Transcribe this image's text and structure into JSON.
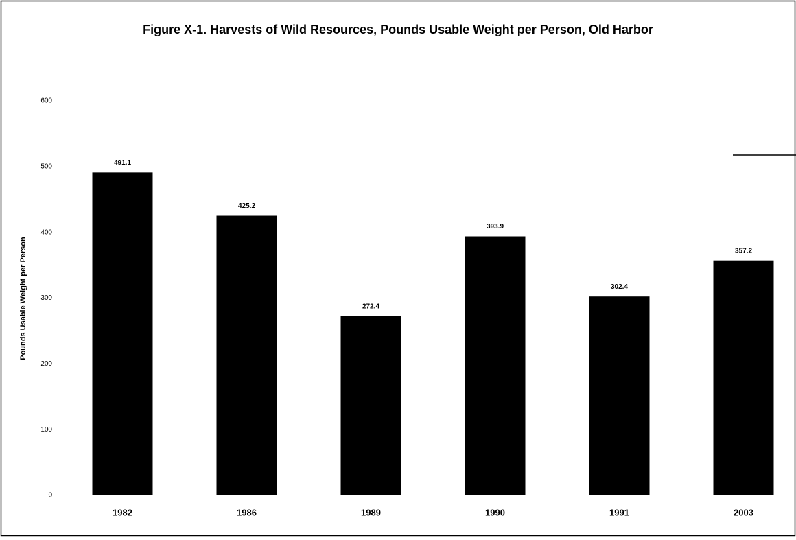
{
  "chart_data": {
    "type": "bar",
    "title": "Figure X-1.  Harvests of Wild Resources, Pounds Usable Weight per Person, Old Harbor",
    "ylabel": "Pounds Usable Weight per Person",
    "categories": [
      "1982",
      "1986",
      "1989",
      "1990",
      "1991",
      "2003"
    ],
    "values": [
      491.1,
      425.2,
      272.4,
      393.9,
      302.4,
      357.2
    ],
    "color": "#000000",
    "ylim": [
      0,
      600
    ],
    "yticks": [
      0,
      100,
      200,
      300,
      400,
      500,
      600
    ],
    "grid": false
  }
}
